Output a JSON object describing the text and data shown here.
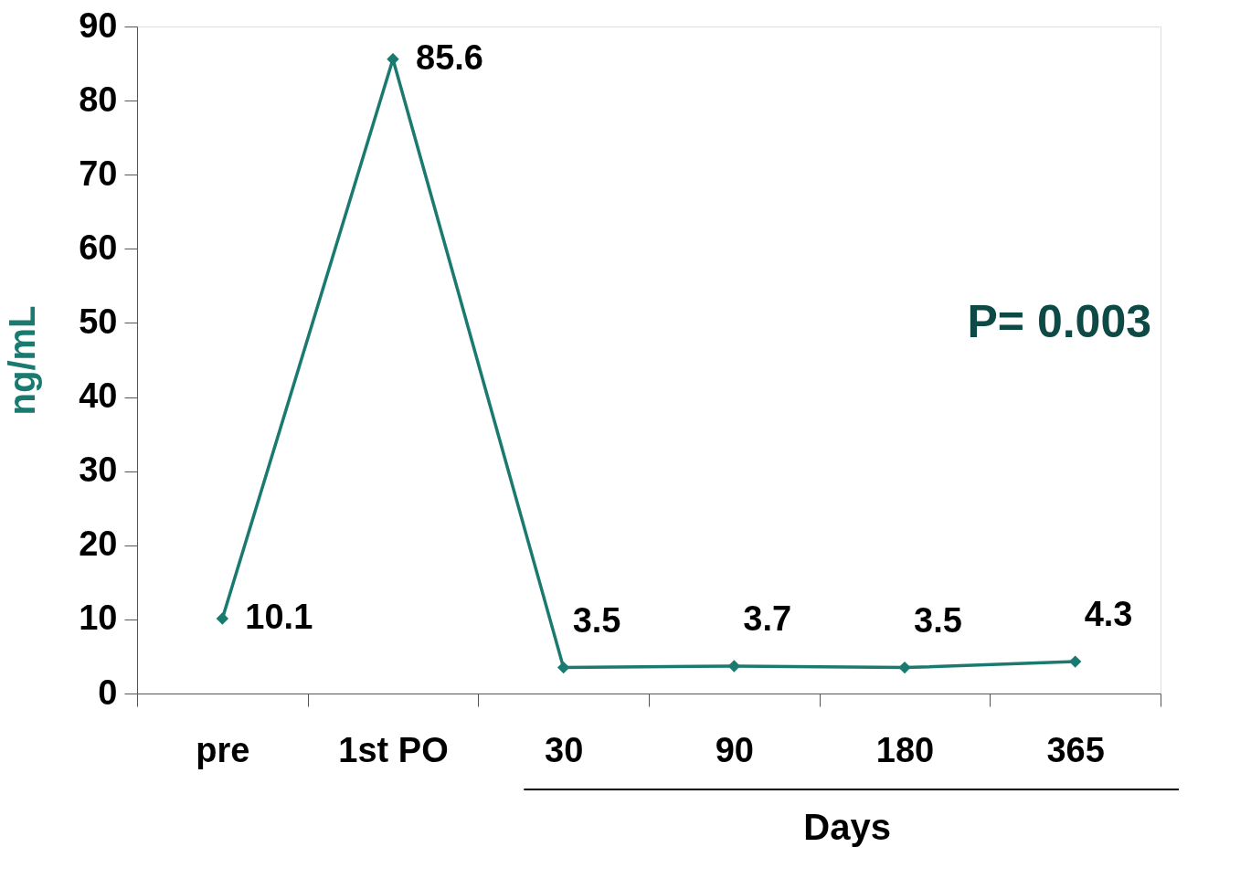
{
  "chart_data": {
    "type": "line",
    "categories": [
      "pre",
      "1st PO",
      "30",
      "90",
      "180",
      "365"
    ],
    "values": [
      10.1,
      85.6,
      3.5,
      3.7,
      3.5,
      4.3
    ],
    "color": "#1a7a70",
    "ylabel": "ng/mL",
    "xlabel": "Days",
    "ylim": [
      0,
      90
    ],
    "yticks": [
      0,
      10,
      20,
      30,
      40,
      50,
      60,
      70,
      80,
      90
    ],
    "data_labels": true,
    "marker": "diamond",
    "grid": false,
    "annotations": [
      "P= 0.003"
    ]
  }
}
